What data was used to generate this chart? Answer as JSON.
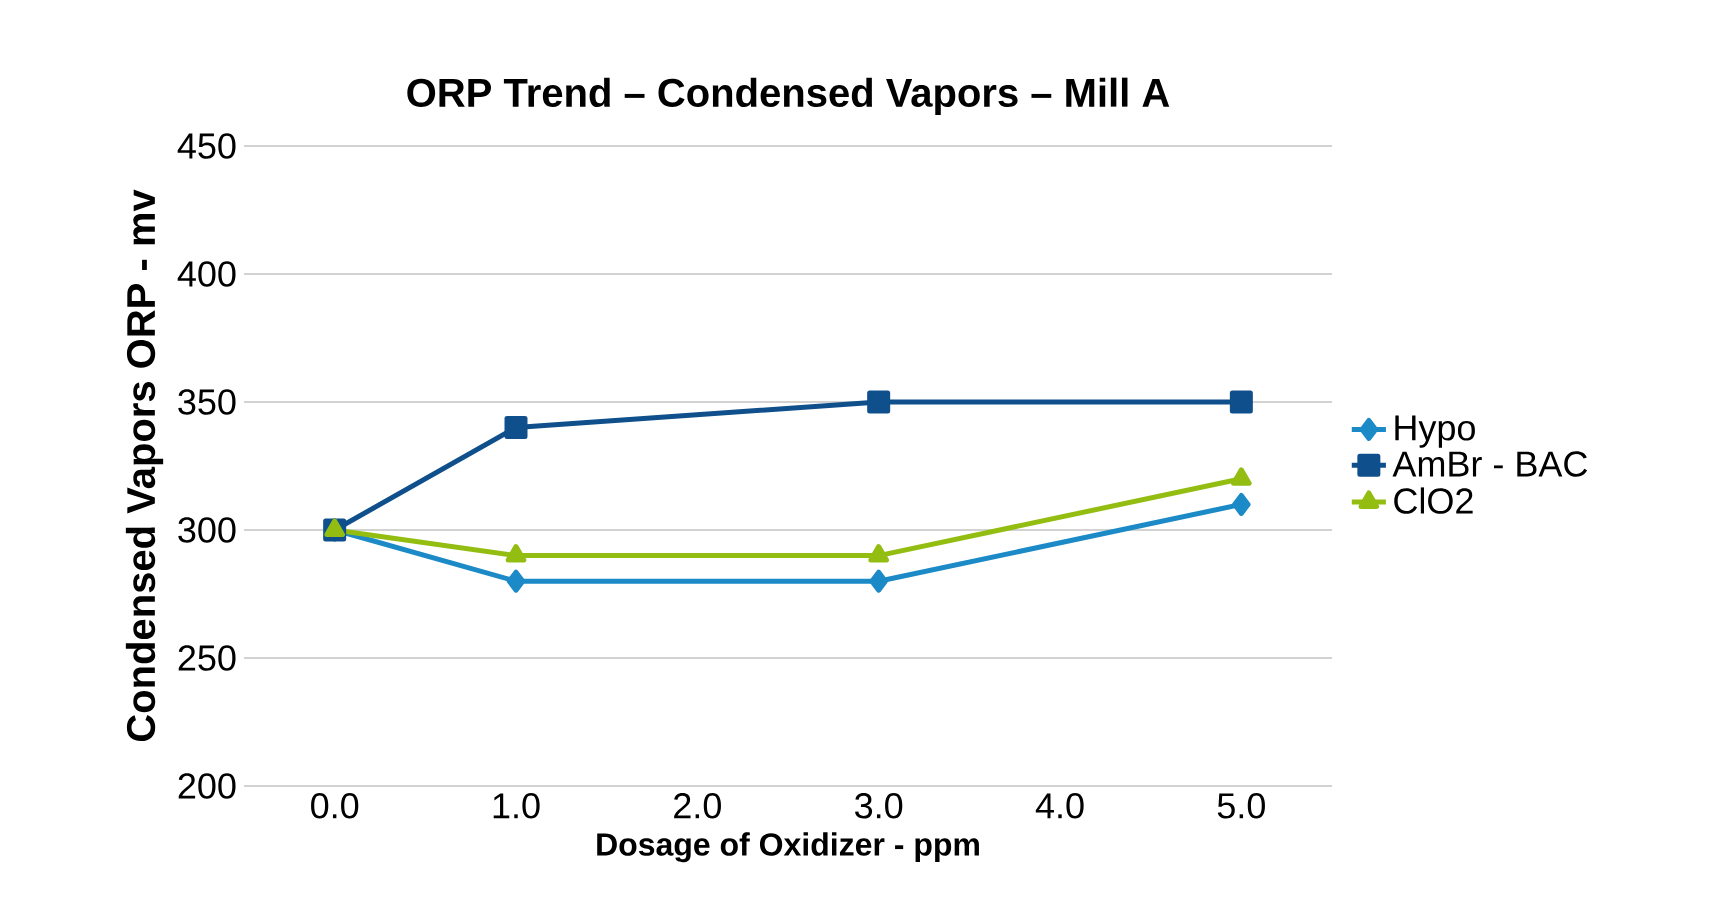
{
  "chart_data": {
    "type": "line",
    "title": "ORP Trend – Condensed Vapors – Mill A",
    "xlabel": "Dosage of Oxidizer - ppm",
    "ylabel": "Condensed Vapors ORP - mv",
    "x": [
      0,
      1,
      3,
      5
    ],
    "xlim": [
      -0.5,
      5.5
    ],
    "xticks": [
      {
        "value": 0,
        "label": "0.0"
      },
      {
        "value": 1,
        "label": "1.0"
      },
      {
        "value": 2,
        "label": "2.0"
      },
      {
        "value": 3,
        "label": "3.0"
      },
      {
        "value": 4,
        "label": "4.0"
      },
      {
        "value": 5,
        "label": "5.0"
      }
    ],
    "ylim": [
      200,
      450
    ],
    "yticks": [
      200,
      250,
      300,
      350,
      400,
      450
    ],
    "grid": "y",
    "legend": "right",
    "series": [
      {
        "name": "Hypo",
        "color": "#1b8ac6",
        "marker": "diamond",
        "values": [
          300,
          280,
          280,
          310
        ]
      },
      {
        "name": "AmBr - BAC",
        "color": "#0e4f8c",
        "marker": "square",
        "values": [
          300,
          340,
          350,
          350
        ]
      },
      {
        "name": "ClO2",
        "color": "#94bd12",
        "marker": "triangle",
        "values": [
          300,
          290,
          290,
          320
        ]
      }
    ]
  }
}
